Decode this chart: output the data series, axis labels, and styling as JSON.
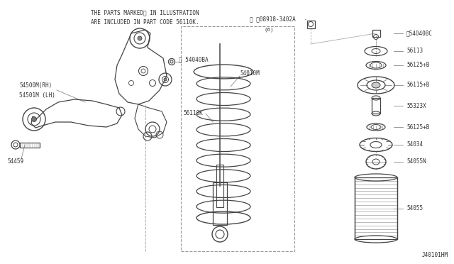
{
  "bg_color": "#ffffff",
  "line_color": "#444444",
  "text_color": "#333333",
  "title_line1": "THE PARTS MARKED※ IN ILLUSTRATION",
  "title_line2": "ARE INCLUDED IN PART CODE 56110K.",
  "footer_text": "J40101HM",
  "fig_w": 6.4,
  "fig_h": 3.72,
  "dpi": 100
}
